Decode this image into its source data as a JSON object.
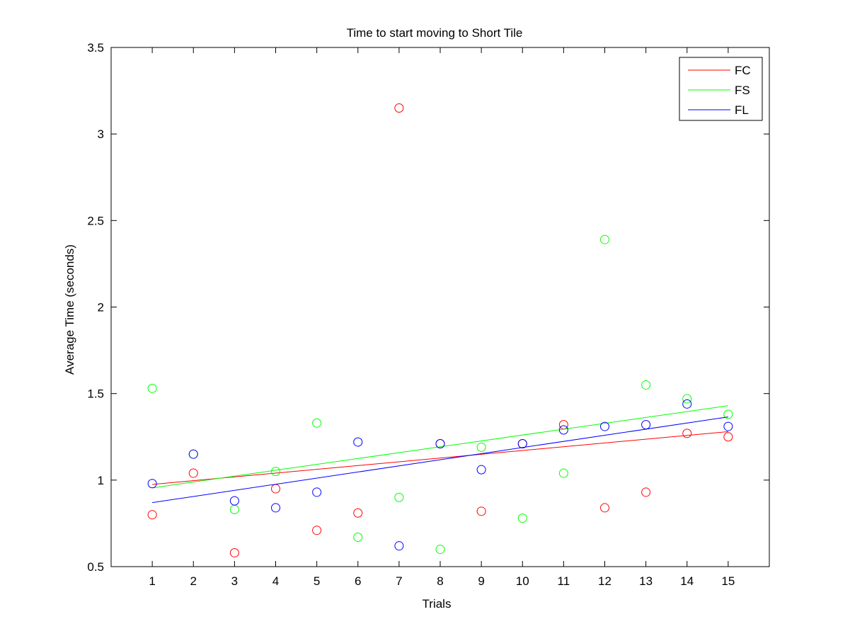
{
  "chart_data": {
    "type": "scatter",
    "title": "Time to start moving to Short Tile",
    "xlabel": "Trials",
    "ylabel": "Average Time (seconds)",
    "xlim": [
      0.0,
      16.0
    ],
    "ylim": [
      0.5,
      3.5
    ],
    "x_ticks": [
      1,
      2,
      3,
      4,
      5,
      6,
      7,
      8,
      9,
      10,
      11,
      12,
      13,
      14,
      15
    ],
    "y_ticks": [
      0.5,
      1,
      1.5,
      2,
      2.5,
      3,
      3.5
    ],
    "y_tick_labels": [
      "0.5",
      "1",
      "1.5",
      "2",
      "2.5",
      "3",
      "3.5"
    ],
    "grid": false,
    "legend_position": "top-right",
    "x": [
      1,
      2,
      3,
      4,
      5,
      6,
      7,
      8,
      9,
      10,
      11,
      12,
      13,
      14,
      15
    ],
    "series": [
      {
        "name": "FC",
        "color": "#ff0000",
        "values": [
          0.8,
          1.04,
          0.58,
          0.95,
          0.71,
          0.81,
          3.15,
          1.21,
          0.82,
          1.21,
          1.32,
          0.84,
          0.93,
          1.27,
          1.25
        ],
        "trend": [
          0.975,
          1.28
        ]
      },
      {
        "name": "FS",
        "color": "#00ff00",
        "values": [
          1.53,
          1.15,
          0.83,
          1.05,
          1.33,
          0.67,
          0.9,
          0.6,
          1.19,
          0.78,
          1.04,
          2.39,
          1.55,
          1.47,
          1.38
        ],
        "trend": [
          0.955,
          1.43
        ]
      },
      {
        "name": "FL",
        "color": "#0000ff",
        "values": [
          0.98,
          1.15,
          0.88,
          0.84,
          0.93,
          1.22,
          0.62,
          1.21,
          1.06,
          1.21,
          1.29,
          1.31,
          1.32,
          1.44,
          1.31
        ],
        "trend": [
          0.87,
          1.365
        ]
      }
    ]
  }
}
